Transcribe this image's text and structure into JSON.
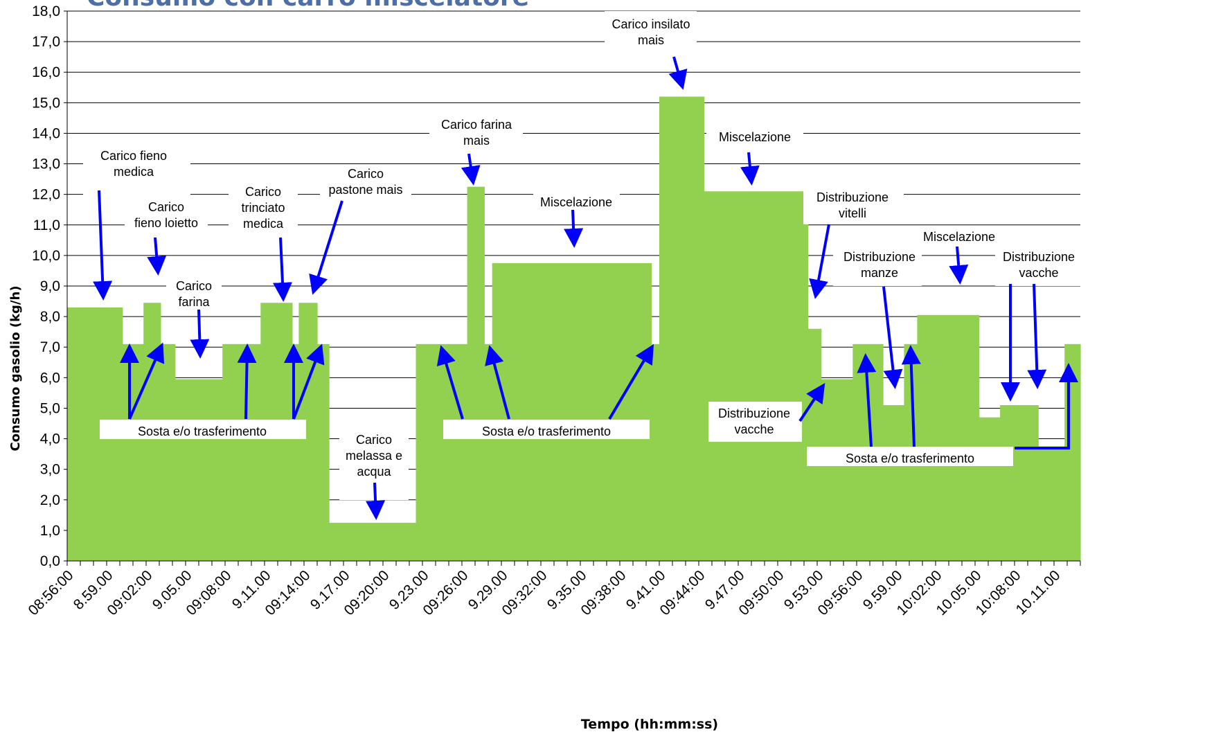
{
  "chart_data": {
    "type": "area",
    "title_partial": "Consumo con carro miscelatore",
    "xlabel": "Tempo (hh:mm:ss)",
    "ylabel": "Consumo gasolio (kg/h)",
    "ylim": [
      0,
      18
    ],
    "grid": true,
    "colors": {
      "fill": "#92d050",
      "arrow": "#0000ff",
      "grid": "#000000"
    },
    "y_ticks": [
      "0,0",
      "1,0",
      "2,0",
      "3,0",
      "4,0",
      "5,0",
      "6,0",
      "7,0",
      "8,0",
      "9,0",
      "10,0",
      "11,0",
      "12,0",
      "13,0",
      "14,0",
      "15,0",
      "16,0",
      "17,0",
      "18,0"
    ],
    "x_labels": [
      "08:56:00",
      "8.59.00",
      "09:02:00",
      "9.05.00",
      "09:08:00",
      "9.11.00",
      "09:14:00",
      "9.17.00",
      "09:20:00",
      "9.23.00",
      "09:26:00",
      "9.29.00",
      "09:32:00",
      "9.35.00",
      "09:38:00",
      "9.41.00",
      "09:44:00",
      "9.47.00",
      "09:50:00",
      "9.53.00",
      "09:56:00",
      "9.59.00",
      "10:02:00",
      "10.05.00",
      "10:08:00",
      "10.11.00"
    ],
    "x_minutes": [
      0,
      77
    ],
    "steps": [
      {
        "t_start": 0.0,
        "t_end": 4.2,
        "value": 8.3
      },
      {
        "t_start": 4.2,
        "t_end": 5.8,
        "value": 7.1
      },
      {
        "t_start": 5.8,
        "t_end": 7.1,
        "value": 8.45
      },
      {
        "t_start": 7.1,
        "t_end": 8.2,
        "value": 7.1
      },
      {
        "t_start": 8.2,
        "t_end": 11.8,
        "value": 5.95
      },
      {
        "t_start": 11.8,
        "t_end": 14.7,
        "value": 7.1
      },
      {
        "t_start": 14.7,
        "t_end": 17.1,
        "value": 8.45
      },
      {
        "t_start": 17.1,
        "t_end": 17.6,
        "value": 7.1
      },
      {
        "t_start": 17.6,
        "t_end": 19.0,
        "value": 8.45
      },
      {
        "t_start": 19.0,
        "t_end": 19.9,
        "value": 7.1
      },
      {
        "t_start": 19.9,
        "t_end": 26.5,
        "value": 1.25
      },
      {
        "t_start": 26.5,
        "t_end": 30.4,
        "value": 7.1
      },
      {
        "t_start": 30.4,
        "t_end": 31.7,
        "value": 12.25
      },
      {
        "t_start": 31.7,
        "t_end": 32.3,
        "value": 7.1
      },
      {
        "t_start": 32.3,
        "t_end": 44.4,
        "value": 9.75
      },
      {
        "t_start": 44.4,
        "t_end": 45.0,
        "value": 7.1
      },
      {
        "t_start": 45.0,
        "t_end": 48.4,
        "value": 15.2
      },
      {
        "t_start": 48.4,
        "t_end": 56.3,
        "value": 12.1
      },
      {
        "t_start": 56.3,
        "t_end": 57.3,
        "value": 7.6
      },
      {
        "t_start": 57.3,
        "t_end": 59.7,
        "value": 5.95
      },
      {
        "t_start": 59.7,
        "t_end": 62.0,
        "value": 7.1
      },
      {
        "t_start": 62.0,
        "t_end": 63.6,
        "value": 5.1
      },
      {
        "t_start": 63.6,
        "t_end": 64.6,
        "value": 7.1
      },
      {
        "t_start": 64.6,
        "t_end": 69.3,
        "value": 8.05
      },
      {
        "t_start": 69.3,
        "t_end": 70.9,
        "value": 4.7
      },
      {
        "t_start": 70.9,
        "t_end": 73.8,
        "value": 5.1
      },
      {
        "t_start": 73.8,
        "t_end": 75.8,
        "value": 3.75
      },
      {
        "t_start": 75.8,
        "t_end": 77.0,
        "value": 7.1
      }
    ],
    "annotations": [
      {
        "id": "carico-fieno-medica",
        "lines": [
          "Carico fieno",
          "medica"
        ]
      },
      {
        "id": "carico-fieno-loietto",
        "lines": [
          "Carico",
          "fieno loietto"
        ]
      },
      {
        "id": "carico-farina",
        "lines": [
          "Carico",
          "farina"
        ]
      },
      {
        "id": "carico-trinciato-medica",
        "lines": [
          "Carico",
          "trinciato",
          "medica"
        ]
      },
      {
        "id": "carico-pastone-mais",
        "lines": [
          "Carico",
          "pastone mais"
        ]
      },
      {
        "id": "carico-melassa-acqua",
        "lines": [
          "Carico",
          "melassa e",
          "acqua"
        ]
      },
      {
        "id": "carico-farina-mais",
        "lines": [
          "Carico farina",
          "mais"
        ]
      },
      {
        "id": "miscelazione-1",
        "lines": [
          "Miscelazione"
        ]
      },
      {
        "id": "carico-insilato-mais",
        "lines": [
          "Carico insilato",
          "mais"
        ]
      },
      {
        "id": "miscelazione-2",
        "lines": [
          "Miscelazione"
        ]
      },
      {
        "id": "distribuzione-vitelli",
        "lines": [
          "Distribuzione",
          "vitelli"
        ]
      },
      {
        "id": "distribuzione-manze",
        "lines": [
          "Distribuzione",
          "manze"
        ]
      },
      {
        "id": "miscelazione-3",
        "lines": [
          "Miscelazione"
        ]
      },
      {
        "id": "distribuzione-vacche-1",
        "lines": [
          "Distribuzione",
          "vacche"
        ]
      },
      {
        "id": "distribuzione-vacche-2",
        "lines": [
          "Distribuzione",
          "vacche"
        ]
      },
      {
        "id": "sosta-1",
        "lines": [
          "Sosta e/o trasferimento"
        ]
      },
      {
        "id": "sosta-2",
        "lines": [
          "Sosta e/o trasferimento"
        ]
      },
      {
        "id": "sosta-3",
        "lines": [
          "Sosta e/o trasferimento"
        ]
      }
    ]
  }
}
